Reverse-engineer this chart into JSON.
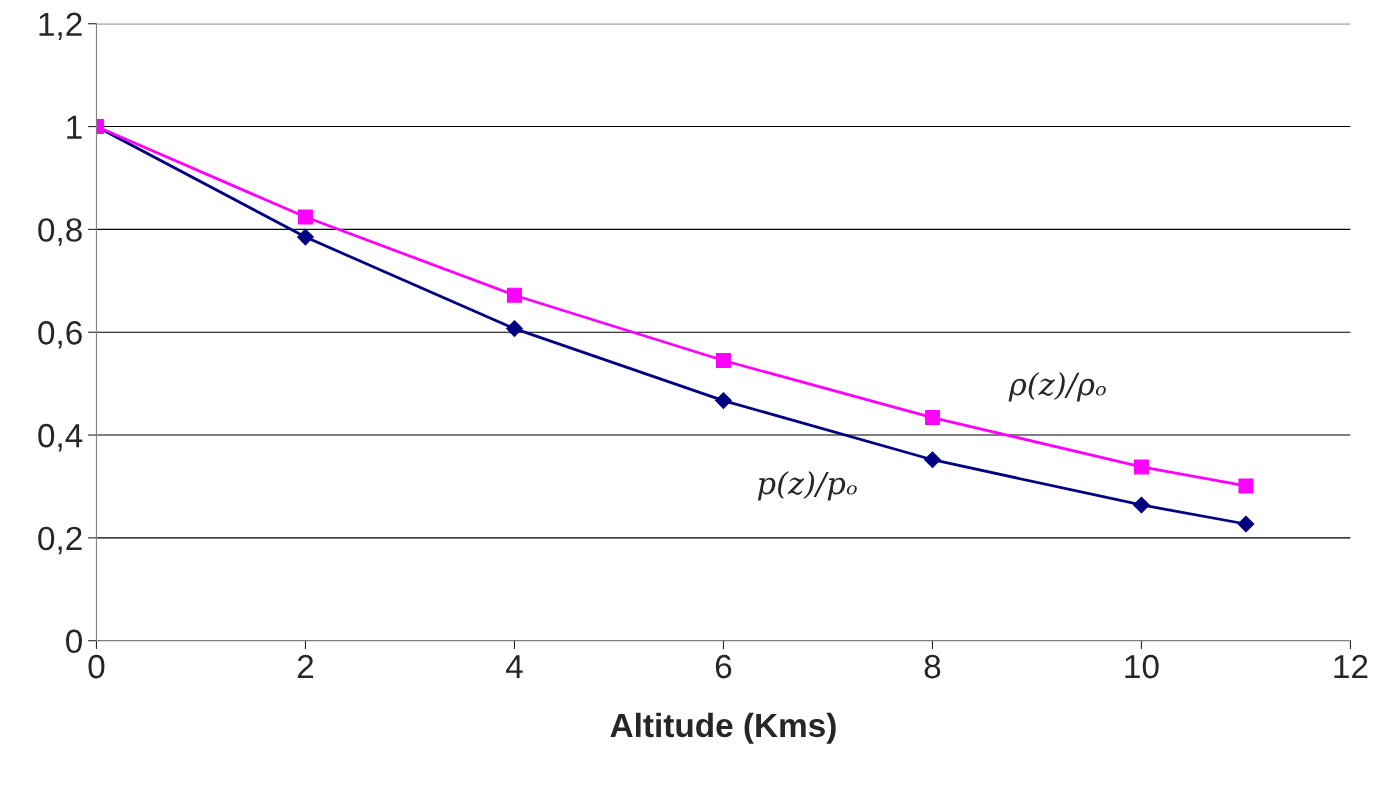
{
  "chart_data": {
    "type": "line",
    "xlabel": "Altitude (Kms)",
    "xlim": [
      0,
      12
    ],
    "xticks": [
      0,
      2,
      4,
      6,
      8,
      10,
      12
    ],
    "ylim": [
      0,
      1.2
    ],
    "yticks": [
      0,
      {
        "value": 0.2,
        "label": "0,2"
      },
      {
        "value": 0.4,
        "label": "0,4"
      },
      {
        "value": 0.6,
        "label": "0,6"
      },
      {
        "value": 0.8,
        "label": "0,8"
      },
      1,
      {
        "value": 1.2,
        "label": "1,2"
      }
    ],
    "grid": "y",
    "legend": false,
    "series": [
      {
        "name": "p(z)/pₒ",
        "color": "#000080",
        "marker": "diamond",
        "x": [
          0,
          2,
          4,
          6,
          8,
          10,
          11
        ],
        "values": [
          1.0,
          0.785,
          0.607,
          0.467,
          0.352,
          0.264,
          0.227
        ]
      },
      {
        "name": "ρ(z)/ρₒ",
        "color": "#ff00ff",
        "marker": "square",
        "x": [
          0,
          2,
          4,
          6,
          8,
          10,
          11
        ],
        "values": [
          1.0,
          0.824,
          0.672,
          0.545,
          0.434,
          0.338,
          0.301
        ]
      }
    ]
  }
}
